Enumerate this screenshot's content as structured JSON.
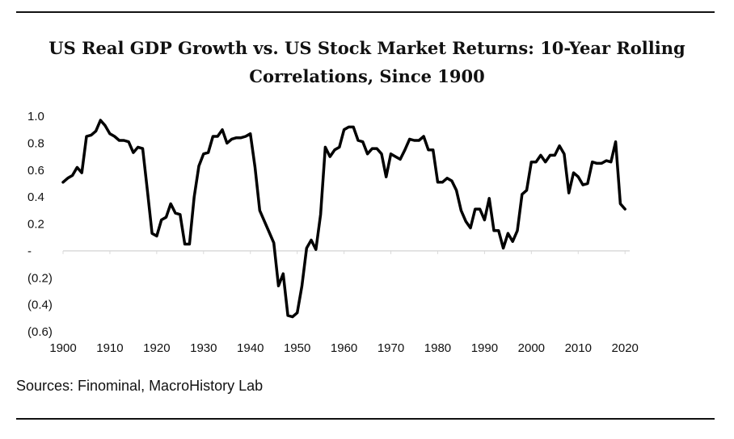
{
  "header": {
    "title_line1": "US Real GDP Growth vs. US Stock Market Returns: 10-Year Rolling",
    "title_line2": "Correlations, Since 1900"
  },
  "footer": {
    "source": "Sources: Finominal, MacroHistory Lab"
  },
  "colors": {
    "line": "#000000",
    "axis": "#d9d9d9",
    "text": "#111111"
  },
  "chart_data": {
    "type": "line",
    "title": "US Real GDP Growth vs. US Stock Market Returns: 10-Year Rolling Correlations, Since 1900",
    "xlabel": "",
    "ylabel": "",
    "xlim": [
      1900,
      2021
    ],
    "ylim": [
      -0.6,
      1.0
    ],
    "grid": false,
    "legend": "none",
    "x_ticks": [
      1900,
      1910,
      1920,
      1930,
      1940,
      1950,
      1960,
      1970,
      1980,
      1990,
      2000,
      2010,
      2020
    ],
    "y_ticks": [
      {
        "value": 1.0,
        "label": "1.0"
      },
      {
        "value": 0.8,
        "label": "0.8"
      },
      {
        "value": 0.6,
        "label": "0.6"
      },
      {
        "value": 0.4,
        "label": "0.4"
      },
      {
        "value": 0.2,
        "label": "0.2"
      },
      {
        "value": 0.0,
        "label": "-"
      },
      {
        "value": -0.2,
        "label": "(0.2)"
      },
      {
        "value": -0.4,
        "label": "(0.4)"
      },
      {
        "value": -0.6,
        "label": "(0.6)"
      }
    ],
    "series": [
      {
        "x": [
          1900,
          1901,
          1902,
          1903,
          1904,
          1905,
          1906,
          1907,
          1908,
          1909,
          1910,
          1911,
          1912,
          1913,
          1914,
          1915,
          1916,
          1917,
          1918,
          1919,
          1920,
          1921,
          1922,
          1923,
          1924,
          1925,
          1926,
          1927,
          1928,
          1929,
          1930,
          1931,
          1932,
          1933,
          1934,
          1935,
          1936,
          1937,
          1938,
          1939,
          1940,
          1941,
          1942,
          1943,
          1944,
          1945,
          1946,
          1947,
          1948,
          1949,
          1950,
          1951,
          1952,
          1953,
          1954,
          1955,
          1956,
          1957,
          1958,
          1959,
          1960,
          1961,
          1962,
          1963,
          1964,
          1965,
          1966,
          1967,
          1968,
          1969,
          1970,
          1971,
          1972,
          1973,
          1974,
          1975,
          1976,
          1977,
          1978,
          1979,
          1980,
          1981,
          1982,
          1983,
          1984,
          1985,
          1986,
          1987,
          1988,
          1989,
          1990,
          1991,
          1992,
          1993,
          1994,
          1995,
          1996,
          1997,
          1998,
          1999,
          2000,
          2001,
          2002,
          2003,
          2004,
          2005,
          2006,
          2007,
          2008,
          2009,
          2010,
          2011,
          2012,
          2013,
          2014,
          2015,
          2016,
          2017,
          2018,
          2019,
          2020
        ],
        "values": [
          0.51,
          0.54,
          0.56,
          0.62,
          0.58,
          0.85,
          0.86,
          0.89,
          0.97,
          0.93,
          0.87,
          0.85,
          0.82,
          0.82,
          0.81,
          0.73,
          0.77,
          0.76,
          0.45,
          0.13,
          0.11,
          0.23,
          0.25,
          0.35,
          0.28,
          0.27,
          0.05,
          0.05,
          0.4,
          0.63,
          0.72,
          0.73,
          0.85,
          0.85,
          0.9,
          0.8,
          0.83,
          0.84,
          0.84,
          0.85,
          0.87,
          0.62,
          0.3,
          0.22,
          0.14,
          0.06,
          -0.26,
          -0.17,
          -0.48,
          -0.49,
          -0.46,
          -0.26,
          0.02,
          0.08,
          0.01,
          0.27,
          0.77,
          0.7,
          0.75,
          0.77,
          0.9,
          0.92,
          0.92,
          0.82,
          0.81,
          0.72,
          0.76,
          0.76,
          0.72,
          0.55,
          0.72,
          0.7,
          0.68,
          0.75,
          0.83,
          0.82,
          0.82,
          0.85,
          0.75,
          0.75,
          0.51,
          0.51,
          0.54,
          0.52,
          0.45,
          0.3,
          0.22,
          0.17,
          0.31,
          0.31,
          0.23,
          0.39,
          0.15,
          0.15,
          0.02,
          0.13,
          0.07,
          0.15,
          0.42,
          0.45,
          0.66,
          0.66,
          0.71,
          0.66,
          0.71,
          0.71,
          0.78,
          0.72,
          0.43,
          0.58,
          0.55,
          0.49,
          0.5,
          0.66,
          0.65,
          0.65,
          0.67,
          0.66,
          0.81,
          0.35,
          0.31
        ]
      }
    ]
  }
}
